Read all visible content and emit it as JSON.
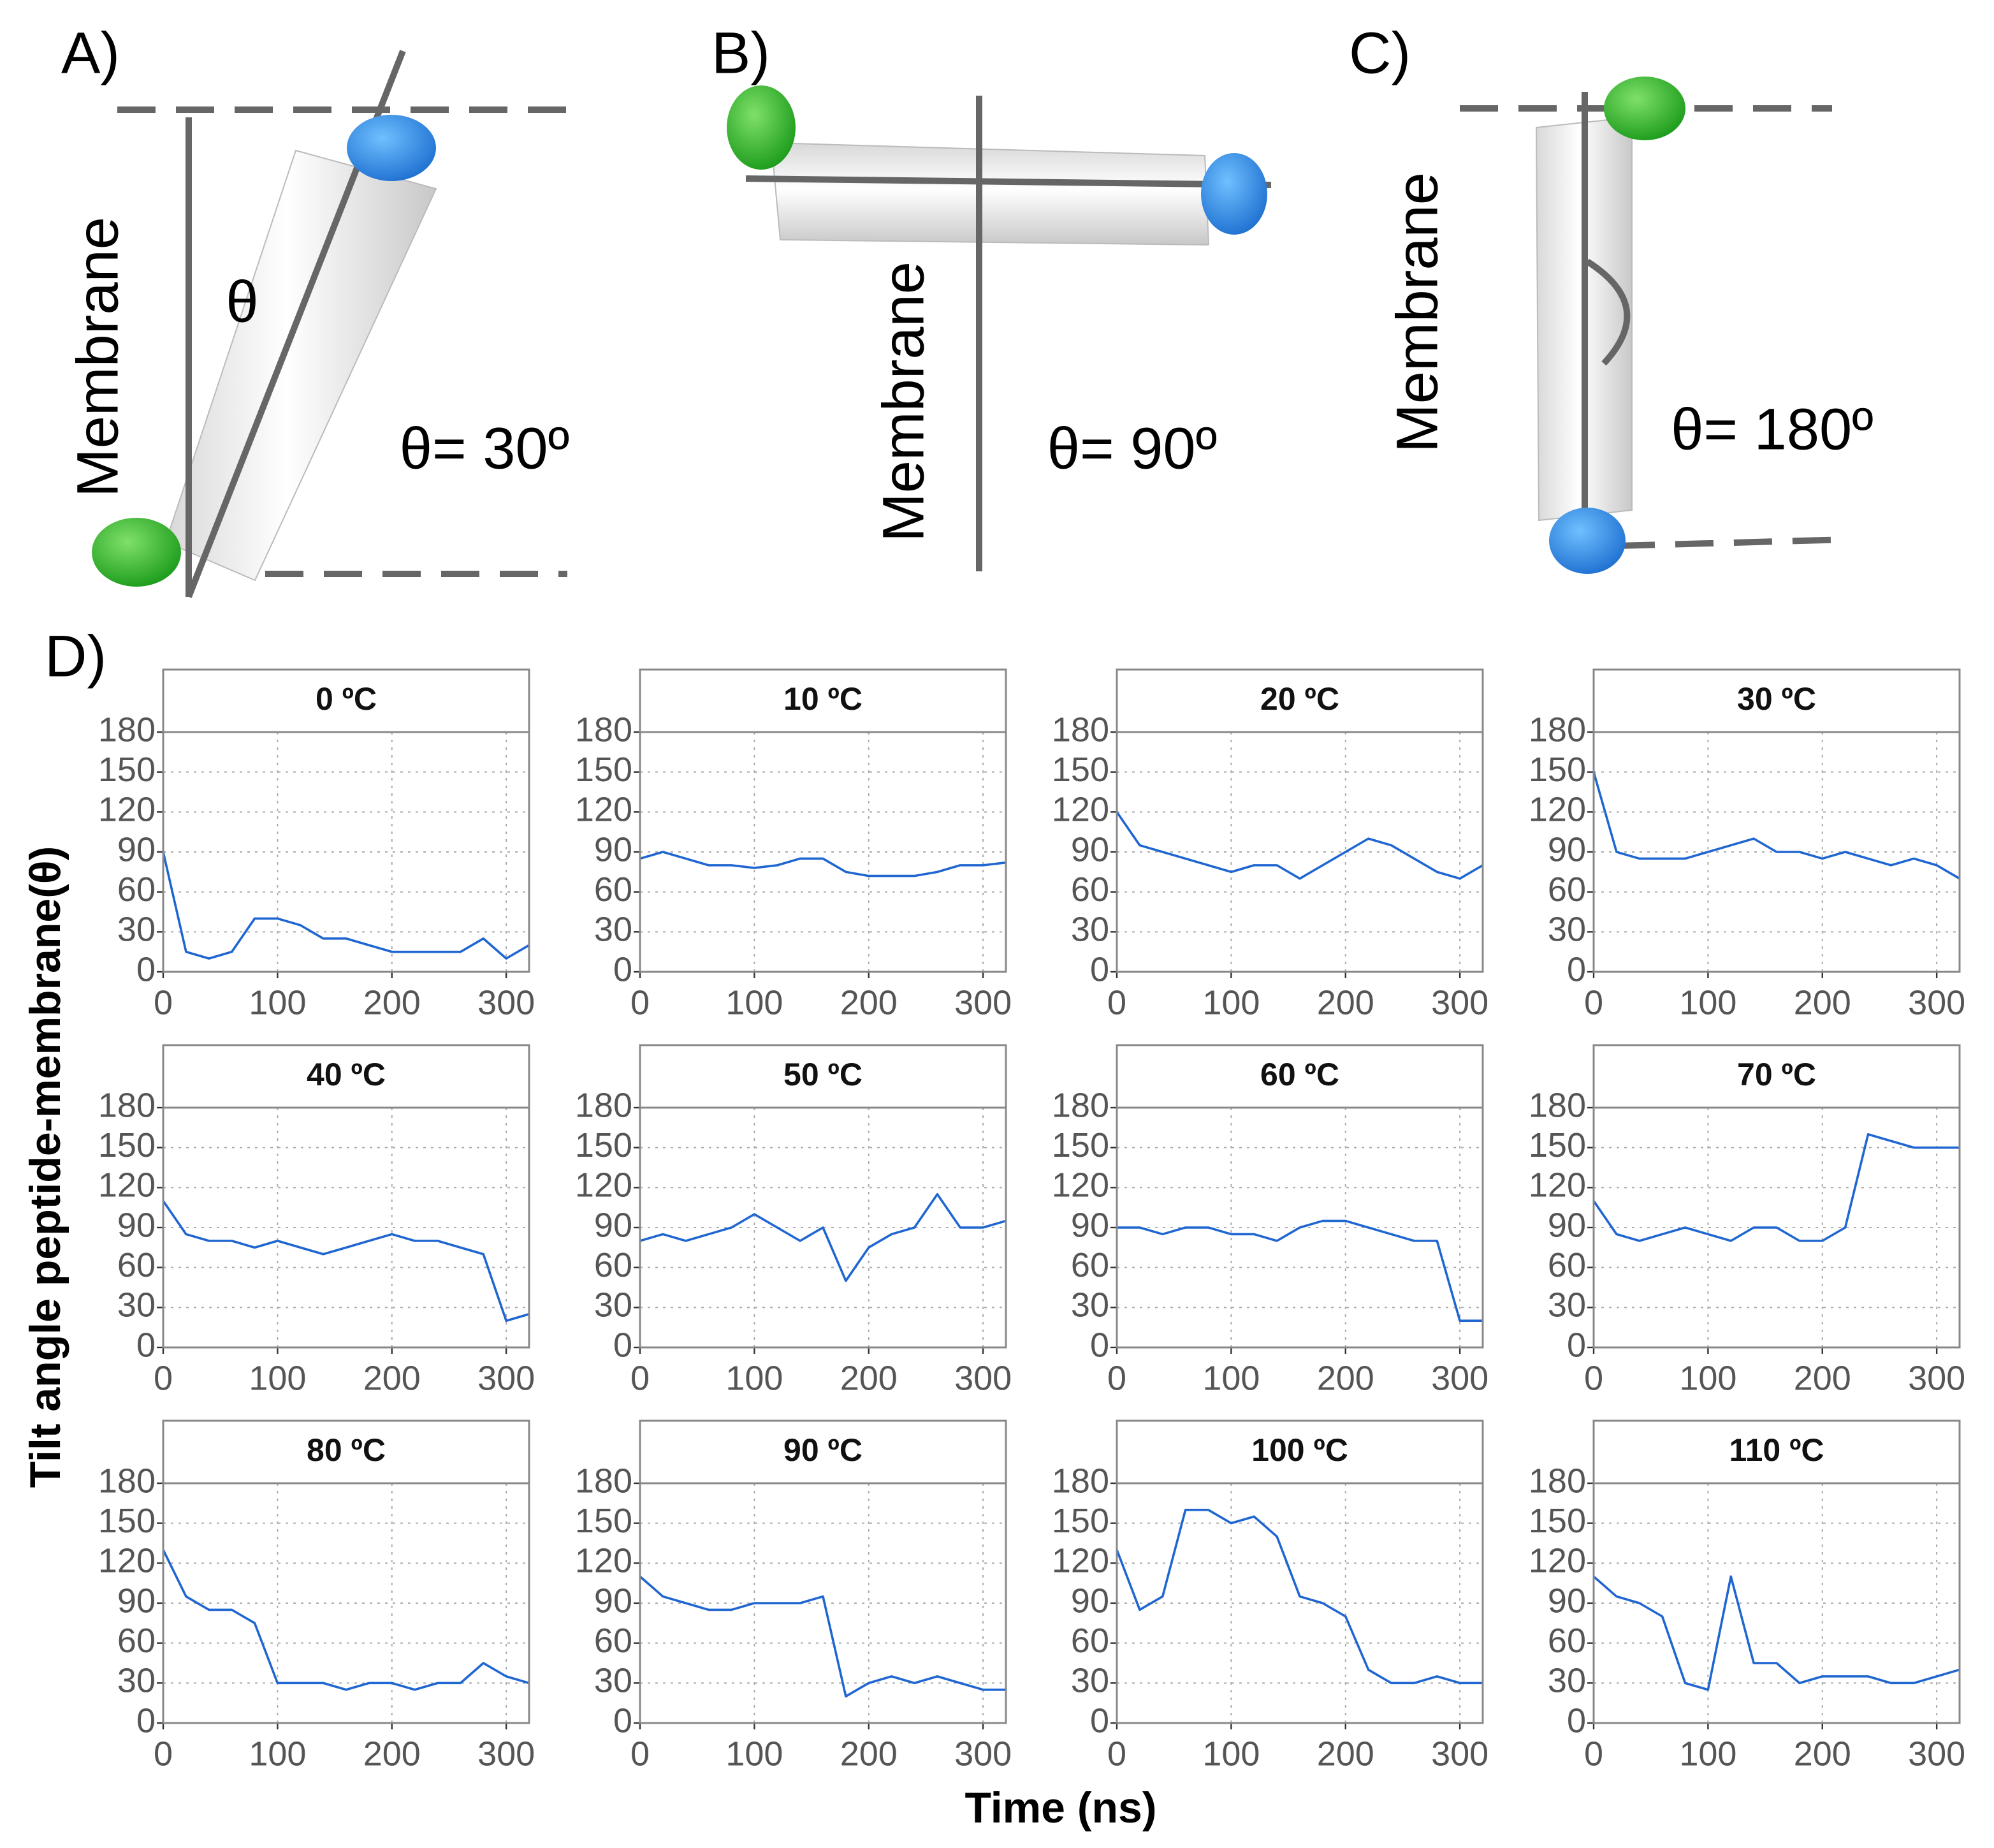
{
  "diagrams": [
    {
      "label": "A)",
      "axis_label": "Membrane",
      "angle_symbol": "θ",
      "angle_text": "θ= 30º"
    },
    {
      "label": "B)",
      "axis_label": "Membrane",
      "angle_text": "θ= 90º"
    },
    {
      "label": "C)",
      "axis_label": "Membrane",
      "angle_text": "θ= 180º"
    }
  ],
  "figure": {
    "label": "D)",
    "xlabel": "Time (ns)",
    "ylabel": "Tilt angle peptide-membrane(θ)"
  },
  "chart_data": [
    {
      "type": "line",
      "title": "0 ºC",
      "x": [
        0,
        20,
        40,
        60,
        80,
        100,
        120,
        140,
        160,
        180,
        200,
        220,
        240,
        260,
        280,
        300,
        320
      ],
      "series": [
        {
          "color": "#1f66d1",
          "values": [
            90,
            15,
            10,
            15,
            40,
            40,
            35,
            25,
            25,
            20,
            15,
            15,
            15,
            15,
            25,
            10,
            20
          ]
        }
      ],
      "xlim": [
        0,
        320
      ],
      "xticks": [
        0,
        100,
        200,
        300
      ],
      "ylim": [
        0,
        180
      ],
      "yticks": [
        0,
        30,
        60,
        90,
        120,
        150,
        180
      ],
      "grid": true
    },
    {
      "type": "line",
      "title": "10 ºC",
      "x": [
        0,
        20,
        40,
        60,
        80,
        100,
        120,
        140,
        160,
        180,
        200,
        220,
        240,
        260,
        280,
        300,
        320
      ],
      "series": [
        {
          "color": "#1f66d1",
          "values": [
            85,
            90,
            85,
            80,
            80,
            78,
            80,
            85,
            85,
            75,
            72,
            72,
            72,
            75,
            80,
            80,
            82
          ]
        }
      ],
      "xlim": [
        0,
        320
      ],
      "xticks": [
        0,
        100,
        200,
        300
      ],
      "ylim": [
        0,
        180
      ],
      "yticks": [
        0,
        30,
        60,
        90,
        120,
        150,
        180
      ],
      "grid": true
    },
    {
      "type": "line",
      "title": "20 ºC",
      "x": [
        0,
        20,
        40,
        60,
        80,
        100,
        120,
        140,
        160,
        180,
        200,
        220,
        240,
        260,
        280,
        300,
        320
      ],
      "series": [
        {
          "color": "#1f66d1",
          "values": [
            120,
            95,
            90,
            85,
            80,
            75,
            80,
            80,
            70,
            80,
            90,
            100,
            95,
            85,
            75,
            70,
            80
          ]
        }
      ],
      "xlim": [
        0,
        320
      ],
      "xticks": [
        0,
        100,
        200,
        300
      ],
      "ylim": [
        0,
        180
      ],
      "yticks": [
        0,
        30,
        60,
        90,
        120,
        150,
        180
      ],
      "grid": true
    },
    {
      "type": "line",
      "title": "30 ºC",
      "x": [
        0,
        20,
        40,
        60,
        80,
        100,
        120,
        140,
        160,
        180,
        200,
        220,
        240,
        260,
        280,
        300,
        320
      ],
      "series": [
        {
          "color": "#1f66d1",
          "values": [
            150,
            90,
            85,
            85,
            85,
            90,
            95,
            100,
            90,
            90,
            85,
            90,
            85,
            80,
            85,
            80,
            70
          ]
        }
      ],
      "xlim": [
        0,
        320
      ],
      "xticks": [
        0,
        100,
        200,
        300
      ],
      "ylim": [
        0,
        180
      ],
      "yticks": [
        0,
        30,
        60,
        90,
        120,
        150,
        180
      ],
      "grid": true
    },
    {
      "type": "line",
      "title": "40 ºC",
      "x": [
        0,
        20,
        40,
        60,
        80,
        100,
        120,
        140,
        160,
        180,
        200,
        220,
        240,
        260,
        280,
        300,
        320
      ],
      "series": [
        {
          "color": "#1f66d1",
          "values": [
            110,
            85,
            80,
            80,
            75,
            80,
            75,
            70,
            75,
            80,
            85,
            80,
            80,
            75,
            70,
            20,
            25
          ]
        }
      ],
      "xlim": [
        0,
        320
      ],
      "xticks": [
        0,
        100,
        200,
        300
      ],
      "ylim": [
        0,
        180
      ],
      "yticks": [
        0,
        30,
        60,
        90,
        120,
        150,
        180
      ],
      "grid": true
    },
    {
      "type": "line",
      "title": "50 ºC",
      "x": [
        0,
        20,
        40,
        60,
        80,
        100,
        120,
        140,
        160,
        180,
        200,
        220,
        240,
        260,
        280,
        300,
        320
      ],
      "series": [
        {
          "color": "#1f66d1",
          "values": [
            80,
            85,
            80,
            85,
            90,
            100,
            90,
            80,
            90,
            50,
            75,
            85,
            90,
            115,
            90,
            90,
            95
          ]
        }
      ],
      "xlim": [
        0,
        320
      ],
      "xticks": [
        0,
        100,
        200,
        300
      ],
      "ylim": [
        0,
        180
      ],
      "yticks": [
        0,
        30,
        60,
        90,
        120,
        150,
        180
      ],
      "grid": true
    },
    {
      "type": "line",
      "title": "60 ºC",
      "x": [
        0,
        20,
        40,
        60,
        80,
        100,
        120,
        140,
        160,
        180,
        200,
        220,
        240,
        260,
        280,
        300,
        320
      ],
      "series": [
        {
          "color": "#1f66d1",
          "values": [
            90,
            90,
            85,
            90,
            90,
            85,
            85,
            80,
            90,
            95,
            95,
            90,
            85,
            80,
            80,
            20,
            20
          ]
        }
      ],
      "xlim": [
        0,
        320
      ],
      "xticks": [
        0,
        100,
        200,
        300
      ],
      "ylim": [
        0,
        180
      ],
      "yticks": [
        0,
        30,
        60,
        90,
        120,
        150,
        180
      ],
      "grid": true
    },
    {
      "type": "line",
      "title": "70 ºC",
      "x": [
        0,
        20,
        40,
        60,
        80,
        100,
        120,
        140,
        160,
        180,
        200,
        220,
        240,
        260,
        280,
        300,
        320
      ],
      "series": [
        {
          "color": "#1f66d1",
          "values": [
            110,
            85,
            80,
            85,
            90,
            85,
            80,
            90,
            90,
            80,
            80,
            90,
            160,
            155,
            150,
            150,
            150
          ]
        }
      ],
      "xlim": [
        0,
        320
      ],
      "xticks": [
        0,
        100,
        200,
        300
      ],
      "ylim": [
        0,
        180
      ],
      "yticks": [
        0,
        30,
        60,
        90,
        120,
        150,
        180
      ],
      "grid": true
    },
    {
      "type": "line",
      "title": "80 ºC",
      "x": [
        0,
        20,
        40,
        60,
        80,
        100,
        120,
        140,
        160,
        180,
        200,
        220,
        240,
        260,
        280,
        300,
        320
      ],
      "series": [
        {
          "color": "#1f66d1",
          "values": [
            130,
            95,
            85,
            85,
            75,
            30,
            30,
            30,
            25,
            30,
            30,
            25,
            30,
            30,
            45,
            35,
            30
          ]
        }
      ],
      "xlim": [
        0,
        320
      ],
      "xticks": [
        0,
        100,
        200,
        300
      ],
      "ylim": [
        0,
        180
      ],
      "yticks": [
        0,
        30,
        60,
        90,
        120,
        150,
        180
      ],
      "grid": true
    },
    {
      "type": "line",
      "title": "90 ºC",
      "x": [
        0,
        20,
        40,
        60,
        80,
        100,
        120,
        140,
        160,
        180,
        200,
        220,
        240,
        260,
        280,
        300,
        320
      ],
      "series": [
        {
          "color": "#1f66d1",
          "values": [
            110,
            95,
            90,
            85,
            85,
            90,
            90,
            90,
            95,
            20,
            30,
            35,
            30,
            35,
            30,
            25,
            25
          ]
        }
      ],
      "xlim": [
        0,
        320
      ],
      "xticks": [
        0,
        100,
        200,
        300
      ],
      "ylim": [
        0,
        180
      ],
      "yticks": [
        0,
        30,
        60,
        90,
        120,
        150,
        180
      ],
      "grid": true
    },
    {
      "type": "line",
      "title": "100 ºC",
      "x": [
        0,
        20,
        40,
        60,
        80,
        100,
        120,
        140,
        160,
        180,
        200,
        220,
        240,
        260,
        280,
        300,
        320
      ],
      "series": [
        {
          "color": "#1f66d1",
          "values": [
            130,
            85,
            95,
            160,
            160,
            150,
            155,
            140,
            95,
            90,
            80,
            40,
            30,
            30,
            35,
            30,
            30
          ]
        }
      ],
      "xlim": [
        0,
        320
      ],
      "xticks": [
        0,
        100,
        200,
        300
      ],
      "ylim": [
        0,
        180
      ],
      "yticks": [
        0,
        30,
        60,
        90,
        120,
        150,
        180
      ],
      "grid": true
    },
    {
      "type": "line",
      "title": "110 ºC",
      "x": [
        0,
        20,
        40,
        60,
        80,
        100,
        120,
        140,
        160,
        180,
        200,
        220,
        240,
        260,
        280,
        300,
        320
      ],
      "series": [
        {
          "color": "#1f66d1",
          "values": [
            110,
            95,
            90,
            80,
            30,
            25,
            110,
            45,
            45,
            30,
            35,
            35,
            35,
            30,
            30,
            35,
            40
          ]
        }
      ],
      "xlim": [
        0,
        320
      ],
      "xticks": [
        0,
        100,
        200,
        300
      ],
      "ylim": [
        0,
        180
      ],
      "yticks": [
        0,
        30,
        60,
        90,
        120,
        150,
        180
      ],
      "grid": true
    }
  ]
}
